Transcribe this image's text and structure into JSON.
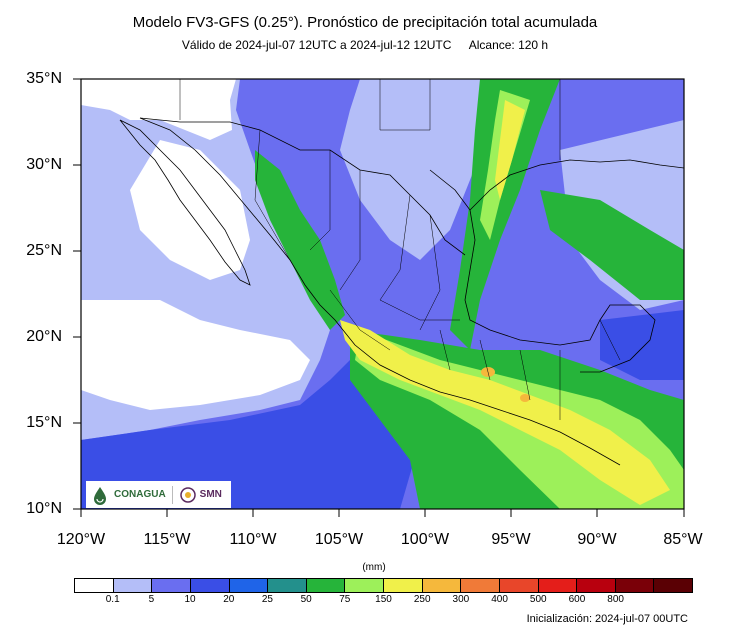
{
  "header": {
    "title": "Modelo FV3-GFS (0.25°). Pronóstico de precipitación total acumulada",
    "valid": "Válido de 2024-jul-07 12UTC a 2024-jul-12 12UTC",
    "range": "Alcance: 120 h"
  },
  "axes": {
    "lat_labels": [
      "35°N",
      "30°N",
      "25°N",
      "20°N",
      "15°N",
      "10°N"
    ],
    "lon_labels": [
      "120°W",
      "115°W",
      "110°W",
      "105°W",
      "100°W",
      "95°W",
      "90°W",
      "85°W"
    ]
  },
  "colorbar": {
    "unit": "(mm)",
    "ticks": [
      "0.1",
      "5",
      "10",
      "20",
      "25",
      "50",
      "75",
      "150",
      "250",
      "300",
      "400",
      "500",
      "600",
      "800"
    ],
    "colors": [
      "#ffffff",
      "#b4bef8",
      "#6a6ef0",
      "#3a4ee6",
      "#1f64e8",
      "#23908c",
      "#26b43a",
      "#9df05a",
      "#f0f04a",
      "#f5b83c",
      "#f07a38",
      "#e8462a",
      "#e41e1a",
      "#b8000e",
      "#7a0008",
      "#5a0004"
    ]
  },
  "logos": {
    "conagua": "CONAGUA",
    "smn": "SMN"
  },
  "footer": {
    "init": "Inicialización: 2024-jul-07 00UTC"
  },
  "map_data": {
    "extent": {
      "lon": [
        -120,
        -85
      ],
      "lat": [
        10,
        35
      ]
    },
    "palette": {
      "white": "#ffffff",
      "light": "#b4bef8",
      "mid": "#6a6ef0",
      "blue": "#3a4ee6",
      "royal": "#1f64e8",
      "teal": "#23908c",
      "green": "#26b43a",
      "lime": "#9df05a",
      "yellow": "#f0f04a",
      "orange": "#f5b83c"
    }
  }
}
